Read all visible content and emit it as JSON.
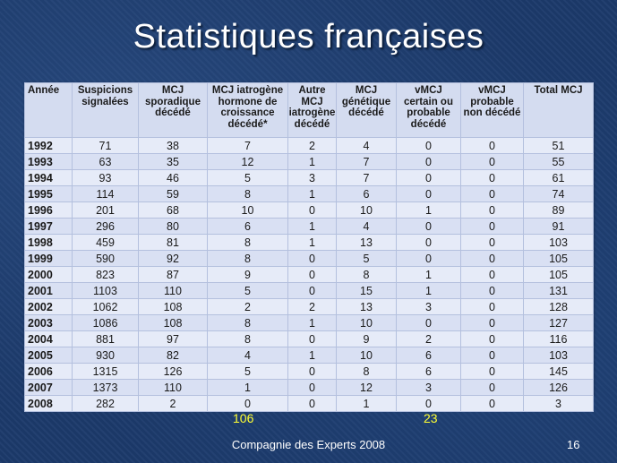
{
  "title": "Statistiques françaises",
  "table": {
    "headers": [
      "Année",
      "Suspicions signalées",
      "MCJ sporadique décédé",
      "MCJ iatrogène hormone de croissance décédé*",
      "Autre MCJ iatrogène décédé",
      "MCJ génétique décédé",
      "vMCJ certain ou probable décédé",
      "vMCJ probable non décédé",
      "Total MCJ"
    ],
    "rows": [
      [
        "1992",
        "71",
        "38",
        "7",
        "2",
        "4",
        "0",
        "0",
        "51"
      ],
      [
        "1993",
        "63",
        "35",
        "12",
        "1",
        "7",
        "0",
        "0",
        "55"
      ],
      [
        "1994",
        "93",
        "46",
        "5",
        "3",
        "7",
        "0",
        "0",
        "61"
      ],
      [
        "1995",
        "114",
        "59",
        "8",
        "1",
        "6",
        "0",
        "0",
        "74"
      ],
      [
        "1996",
        "201",
        "68",
        "10",
        "0",
        "10",
        "1",
        "0",
        "89"
      ],
      [
        "1997",
        "296",
        "80",
        "6",
        "1",
        "4",
        "0",
        "0",
        "91"
      ],
      [
        "1998",
        "459",
        "81",
        "8",
        "1",
        "13",
        "0",
        "0",
        "103"
      ],
      [
        "1999",
        "590",
        "92",
        "8",
        "0",
        "5",
        "0",
        "0",
        "105"
      ],
      [
        "2000",
        "823",
        "87",
        "9",
        "0",
        "8",
        "1",
        "0",
        "105"
      ],
      [
        "2001",
        "1103",
        "110",
        "5",
        "0",
        "15",
        "1",
        "0",
        "131"
      ],
      [
        "2002",
        "1062",
        "108",
        "2",
        "2",
        "13",
        "3",
        "0",
        "128"
      ],
      [
        "2003",
        "1086",
        "108",
        "8",
        "1",
        "10",
        "0",
        "0",
        "127"
      ],
      [
        "2004",
        "881",
        "97",
        "8",
        "0",
        "9",
        "2",
        "0",
        "116"
      ],
      [
        "2005",
        "930",
        "82",
        "4",
        "1",
        "10",
        "6",
        "0",
        "103"
      ],
      [
        "2006",
        "1315",
        "126",
        "5",
        "0",
        "8",
        "6",
        "0",
        "145"
      ],
      [
        "2007",
        "1373",
        "110",
        "1",
        "0",
        "12",
        "3",
        "0",
        "126"
      ],
      [
        "2008",
        "282",
        "2",
        "0",
        "0",
        "1",
        "0",
        "0",
        "3"
      ]
    ]
  },
  "totals_note": {
    "iatrogenic_gh_total": "106",
    "vcjd_total": "23"
  },
  "footer": {
    "text": "Compagnie des Experts 2008",
    "page_number": "16"
  }
}
